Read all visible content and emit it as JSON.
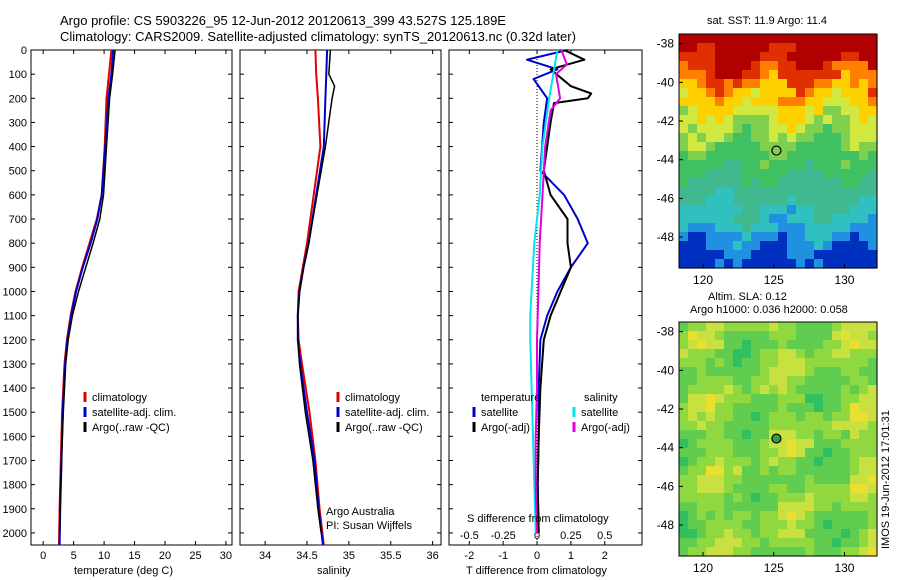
{
  "header": {
    "line1": "Argo profile: CS 5903226_95 12-Jun-2012 20120613_399 43.527S 125.189E",
    "line2": "Climatology: CARS2009. Satellite-adjusted climatology: synTS_20120613.nc (0.32d later)"
  },
  "credits": {
    "line1": "Argo Australia",
    "line2": "PI: Susan Wijffels"
  },
  "stamp": "IMOS 19-Jun-2012 17:01:31",
  "maps": {
    "sst": {
      "title": "sat. SST: 11.9 Argo: 11.4",
      "xticks": [
        "120",
        "125",
        "130"
      ],
      "yticks": [
        "-38",
        "-40",
        "-42",
        "-44",
        "-46",
        "-48"
      ]
    },
    "sla": {
      "title1": "Altim. SLA: 0.12",
      "title2": "Argo h1000: 0.036 h2000: 0.058",
      "xticks": [
        "120",
        "125",
        "130"
      ],
      "yticks": [
        "-38",
        "-40",
        "-42",
        "-44",
        "-46",
        "-48"
      ]
    },
    "argo_position": {
      "lon": 125.189,
      "lat": -43.527
    }
  },
  "colors": {
    "climatology": "#e00000",
    "satellite": "#0000cc",
    "argo": "#000000",
    "cyan": "#00e5ee",
    "magenta": "#e000e0"
  },
  "chart_data": [
    {
      "type": "line",
      "xlabel": "temperature (deg C)",
      "xlim": [
        -2,
        31
      ],
      "ylim": [
        2050,
        0
      ],
      "xticks": [
        "0",
        "5",
        "10",
        "15",
        "20",
        "25",
        "30"
      ],
      "yticks": [
        "0",
        "100",
        "200",
        "300",
        "400",
        "500",
        "600",
        "700",
        "800",
        "900",
        "1000",
        "1100",
        "1200",
        "1300",
        "1400",
        "1500",
        "1600",
        "1700",
        "1800",
        "1900",
        "2000"
      ],
      "legend": [
        "climatology",
        "satellite-adj. clim.",
        "Argo(..raw -QC)"
      ],
      "series": [
        {
          "name": "climatology",
          "depth": [
            0,
            100,
            200,
            400,
            600,
            700,
            800,
            900,
            1000,
            1100,
            1200,
            1300,
            1500,
            1700,
            1900,
            2050
          ],
          "values": [
            11.2,
            10.8,
            10.4,
            10.1,
            9.6,
            8.8,
            7.6,
            6.4,
            5.3,
            4.5,
            3.9,
            3.5,
            3.1,
            2.9,
            2.7,
            2.6
          ]
        },
        {
          "name": "satellite-adj. clim.",
          "depth": [
            0,
            100,
            200,
            400,
            600,
            700,
            800,
            900,
            1000,
            1100,
            1200,
            1300,
            1500,
            1700,
            1900,
            2050
          ],
          "values": [
            11.5,
            11.2,
            10.7,
            10.2,
            9.6,
            8.9,
            7.8,
            6.5,
            5.4,
            4.6,
            4.0,
            3.6,
            3.2,
            3.0,
            2.8,
            2.7
          ]
        },
        {
          "name": "Argo(..raw -QC)",
          "depth": [
            0,
            100,
            200,
            400,
            600,
            700,
            800,
            900,
            1000,
            1100,
            1200,
            1300,
            1500,
            1700,
            1900,
            2000
          ],
          "values": [
            11.8,
            11.4,
            10.9,
            10.4,
            9.9,
            9.3,
            8.2,
            7.0,
            5.8,
            4.8,
            4.1,
            3.7,
            3.3,
            3.0,
            2.8,
            2.7
          ]
        }
      ]
    },
    {
      "type": "line",
      "xlabel": "salinity",
      "xlim": [
        33.7,
        36.1
      ],
      "ylim": [
        2050,
        0
      ],
      "xticks": [
        "34",
        "34.5",
        "35",
        "35.5",
        "36"
      ],
      "legend": [
        "climatology",
        "satellite-adj. clim.",
        "Argo(..raw -QC)"
      ],
      "series": [
        {
          "name": "climatology",
          "depth": [
            0,
            100,
            200,
            400,
            600,
            800,
            900,
            1000,
            1100,
            1200,
            1300,
            1500,
            1700,
            1900,
            2050
          ],
          "values": [
            34.6,
            34.61,
            34.63,
            34.66,
            34.58,
            34.5,
            34.45,
            34.4,
            34.39,
            34.4,
            34.44,
            34.53,
            34.6,
            34.65,
            34.7
          ]
        },
        {
          "name": "satellite-adj. clim.",
          "depth": [
            0,
            100,
            200,
            400,
            600,
            800,
            900,
            1000,
            1100,
            1200,
            1300,
            1500,
            1700,
            1900,
            2050
          ],
          "values": [
            34.74,
            34.73,
            34.72,
            34.7,
            34.61,
            34.52,
            34.46,
            34.41,
            34.39,
            34.39,
            34.42,
            34.5,
            34.59,
            34.64,
            34.69
          ]
        },
        {
          "name": "Argo(..raw -QC)",
          "depth": [
            0,
            100,
            150,
            200,
            250,
            400,
            600,
            800,
            900,
            1000,
            1100,
            1200,
            1300,
            1500,
            1700,
            1900,
            2000
          ],
          "values": [
            34.78,
            34.76,
            34.83,
            34.8,
            34.78,
            34.72,
            34.62,
            34.52,
            34.46,
            34.41,
            34.39,
            34.39,
            34.41,
            34.48,
            34.57,
            34.63,
            34.67
          ]
        }
      ]
    },
    {
      "type": "line",
      "xlabel": "T difference from climatology",
      "xlabel2": "S difference from climatology",
      "xlim": [
        -2.6,
        3.1
      ],
      "ylim": [
        2050,
        0
      ],
      "xticks": [
        "-2",
        "-1",
        "0",
        "1",
        "2"
      ],
      "xticks2": [
        "-0.5",
        "-0.25",
        "0",
        "0.25",
        "0.5"
      ],
      "legend_temperature": {
        "title": "temperature",
        "items": [
          "satellite",
          "Argo(-adj)"
        ]
      },
      "legend_salinity": {
        "title": "salinity",
        "items": [
          "satellite",
          "Argo(-adj)"
        ]
      },
      "series": [
        {
          "name": "satellite",
          "quantity": "temperature",
          "depth": [
            0,
            40,
            80,
            120,
            200,
            300,
            400,
            500,
            600,
            700,
            800,
            900,
            1000,
            1100,
            1200,
            1400,
            1600,
            1800,
            2000
          ],
          "values": [
            0.9,
            -0.3,
            0.6,
            -0.1,
            0.3,
            0.2,
            0.15,
            0.1,
            0.8,
            1.2,
            1.5,
            1.0,
            0.6,
            0.3,
            0.1,
            0.05,
            0.05,
            0.02,
            0.05
          ]
        },
        {
          "name": "Argo(-adj)",
          "quantity": "temperature",
          "depth": [
            0,
            40,
            80,
            150,
            180,
            200,
            220,
            300,
            400,
            500,
            600,
            700,
            800,
            900,
            1000,
            1100,
            1200,
            1400,
            1600,
            1800,
            2000
          ],
          "values": [
            0.8,
            1.4,
            0.4,
            1.0,
            1.6,
            1.5,
            0.5,
            0.4,
            0.3,
            0.2,
            0.4,
            0.9,
            0.9,
            1.0,
            0.7,
            0.4,
            0.2,
            0.1,
            0.05,
            0.02,
            0.05
          ]
        },
        {
          "name": "satellite",
          "quantity": "salinity",
          "depth": [
            0,
            100,
            200,
            400,
            600,
            800,
            1000,
            1100,
            1200,
            1400,
            1600,
            1800,
            2000
          ],
          "values": [
            0.15,
            0.12,
            0.09,
            0.04,
            0.02,
            -0.02,
            -0.04,
            -0.05,
            -0.05,
            -0.04,
            -0.03,
            -0.02,
            -0.01
          ]
        },
        {
          "name": "Argo(-adj)",
          "quantity": "salinity",
          "depth": [
            0,
            60,
            100,
            200,
            250,
            400,
            600,
            800,
            1000,
            1200,
            1400,
            1600,
            1800,
            2000
          ],
          "values": [
            0.18,
            0.22,
            0.14,
            0.17,
            0.1,
            0.06,
            0.04,
            0.02,
            0.01,
            0.0,
            0.0,
            -0.01,
            -0.01,
            0.0
          ]
        }
      ]
    }
  ]
}
